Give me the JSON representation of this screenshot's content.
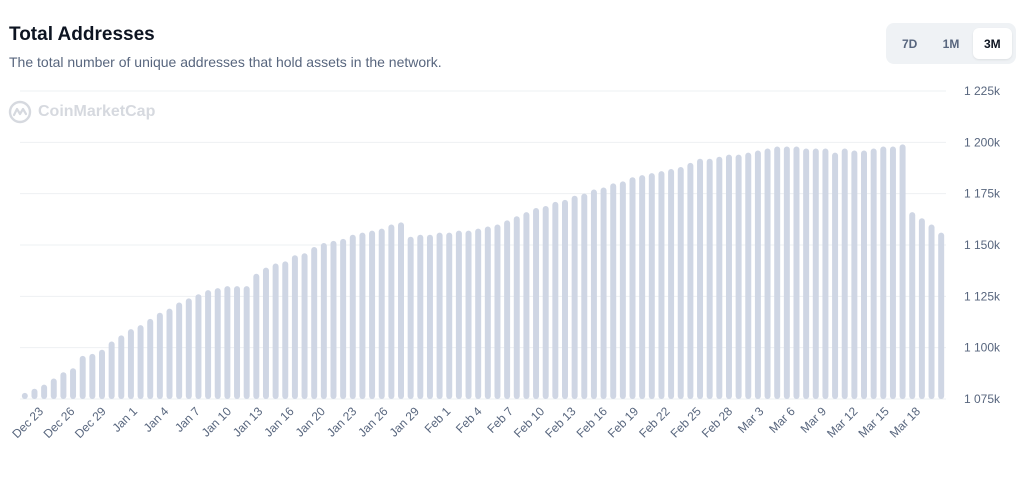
{
  "header": {
    "title": "Total Addresses",
    "subtitle": "The total number of unique addresses that hold assets in the network."
  },
  "range_tabs": [
    {
      "label": "7D",
      "active": false
    },
    {
      "label": "1M",
      "active": false
    },
    {
      "label": "3M",
      "active": true
    }
  ],
  "watermark": {
    "text": "CoinMarketCap",
    "icon": "coinmarketcap-logo-icon"
  },
  "colors": {
    "bar": "#cfd6e4",
    "grid": "#eef0f3",
    "axis_text": "#58667e"
  },
  "chart_data": {
    "type": "bar",
    "title": "Total Addresses",
    "y_tick_labels": [
      "1 075k",
      "1 100k",
      "1 125k",
      "1 150k",
      "1 175k",
      "1 200k",
      "1 225k"
    ],
    "y_ticks": [
      1075,
      1100,
      1125,
      1150,
      1175,
      1200,
      1225
    ],
    "ylim": [
      1075,
      1225
    ],
    "y_unit": "k",
    "x_tick_labels": [
      "Dec 23",
      "Dec 26",
      "Dec 29",
      "Jan 1",
      "Jan 4",
      "Jan 7",
      "Jan 10",
      "Jan 13",
      "Jan 16",
      "Jan 20",
      "Jan 23",
      "Jan 26",
      "Jan 29",
      "Feb 1",
      "Feb 4",
      "Feb 7",
      "Feb 10",
      "Feb 13",
      "Feb 16",
      "Feb 19",
      "Feb 22",
      "Feb 25",
      "Feb 28",
      "Mar 3",
      "Mar 6",
      "Mar 9",
      "Mar 12",
      "Mar 15",
      "Mar 18"
    ],
    "grid": true,
    "values": [
      1078,
      1080,
      1082,
      1085,
      1088,
      1090,
      1096,
      1097,
      1099,
      1103,
      1106,
      1109,
      1111,
      1114,
      1117,
      1119,
      1122,
      1124,
      1126,
      1128,
      1129,
      1130,
      1130,
      1130,
      1136,
      1139,
      1141,
      1142,
      1145,
      1146,
      1149,
      1151,
      1152,
      1153,
      1155,
      1156,
      1157,
      1158,
      1160,
      1161,
      1154,
      1155,
      1155,
      1156,
      1156,
      1157,
      1157,
      1158,
      1159,
      1160,
      1162,
      1164,
      1166,
      1168,
      1169,
      1171,
      1172,
      1174,
      1175,
      1177,
      1178,
      1180,
      1181,
      1183,
      1184,
      1185,
      1186,
      1187,
      1188,
      1190,
      1192,
      1192,
      1193,
      1194,
      1194,
      1195,
      1196,
      1197,
      1198,
      1198,
      1198,
      1197,
      1197,
      1197,
      1195,
      1197,
      1196,
      1196,
      1197,
      1198,
      1198,
      1199,
      1166,
      1163,
      1160,
      1156
    ]
  }
}
